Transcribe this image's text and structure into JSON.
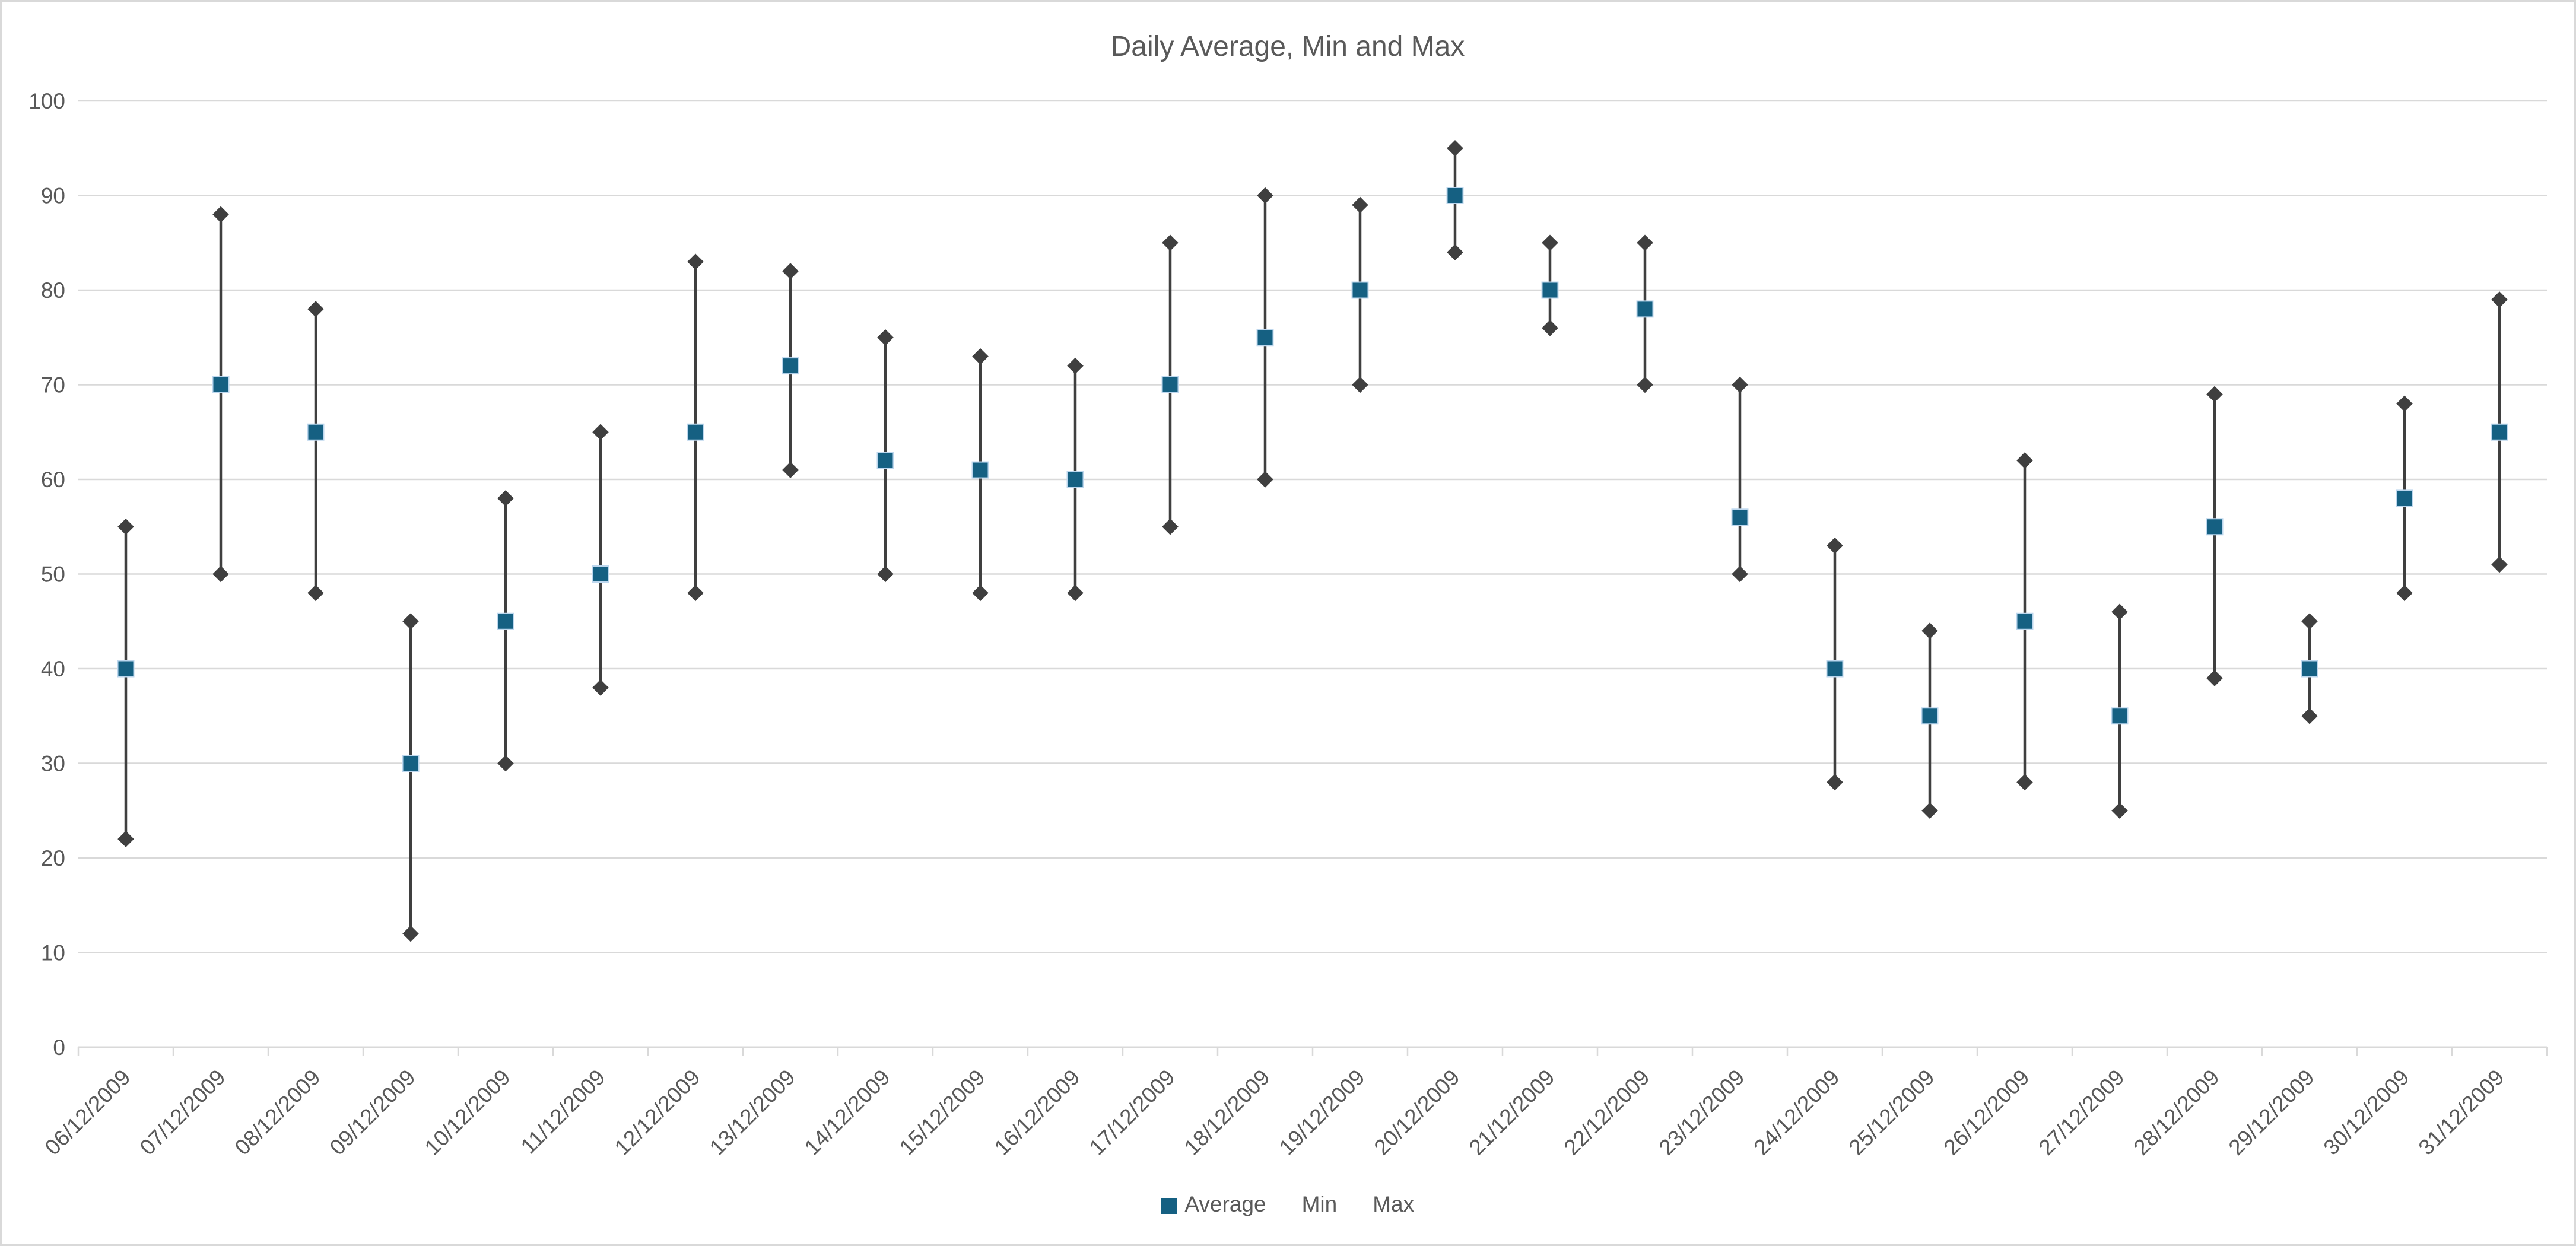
{
  "title": "Daily Average, Min and Max",
  "colors": {
    "background": "#FFFFFF",
    "chart_border": "#D9D9D9",
    "gridline": "#D9D9D9",
    "axis_line": "#D9D9D9",
    "tick": "#D9D9D9",
    "text": "#595959",
    "average_marker": "#156082",
    "average_marker_border": "#BDD7EE",
    "minmax_marker": "#3F3F3F",
    "hilo_line": "#3F3F3F"
  },
  "y_axis": {
    "ticks": [
      0,
      10,
      20,
      30,
      40,
      50,
      60,
      70,
      80,
      90,
      100
    ]
  },
  "legend": {
    "items": [
      {
        "label": "Average",
        "marker": "square"
      },
      {
        "label": "Min",
        "marker": "none"
      },
      {
        "label": "Max",
        "marker": "none"
      }
    ],
    "position": "bottom"
  },
  "chart_data": {
    "type": "line",
    "subtype": "high-low-stock",
    "title": "Daily Average, Min and Max",
    "xlabel": "",
    "ylabel": "",
    "ylim": [
      0,
      100
    ],
    "ytick_step": 10,
    "grid": true,
    "legend_position": "bottom",
    "categories": [
      "06/12/2009",
      "07/12/2009",
      "08/12/2009",
      "09/12/2009",
      "10/12/2009",
      "11/12/2009",
      "12/12/2009",
      "13/12/2009",
      "14/12/2009",
      "15/12/2009",
      "16/12/2009",
      "17/12/2009",
      "18/12/2009",
      "19/12/2009",
      "20/12/2009",
      "21/12/2009",
      "22/12/2009",
      "23/12/2009",
      "24/12/2009",
      "25/12/2009",
      "26/12/2009",
      "27/12/2009",
      "28/12/2009",
      "29/12/2009",
      "30/12/2009",
      "31/12/2009"
    ],
    "series": [
      {
        "name": "Average",
        "values": [
          40,
          70,
          65,
          30,
          45,
          50,
          65,
          72,
          62,
          61,
          60,
          70,
          75,
          80,
          90,
          80,
          78,
          56,
          40,
          35,
          45,
          35,
          55,
          40,
          58,
          65
        ]
      },
      {
        "name": "Min",
        "values": [
          22,
          50,
          48,
          12,
          30,
          38,
          48,
          61,
          50,
          48,
          48,
          55,
          60,
          70,
          84,
          76,
          70,
          50,
          28,
          25,
          28,
          25,
          39,
          35,
          48,
          51
        ]
      },
      {
        "name": "Max",
        "values": [
          55,
          88,
          78,
          45,
          58,
          65,
          83,
          82,
          75,
          73,
          72,
          85,
          90,
          89,
          95,
          85,
          85,
          70,
          53,
          44,
          62,
          46,
          69,
          45,
          68,
          79
        ]
      }
    ]
  }
}
